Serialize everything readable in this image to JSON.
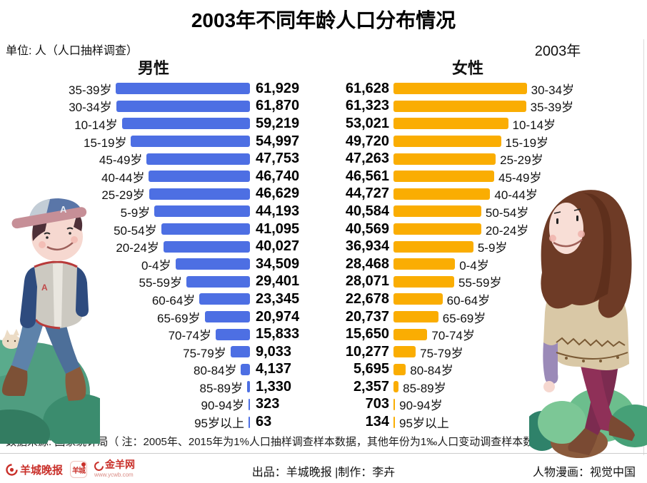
{
  "title": "2003年不同年龄人口分布情况",
  "unit_note": "单位: 人（人口抽样调查）",
  "year_label": "2003年",
  "male_header": "男性",
  "female_header": "女性",
  "colors": {
    "male_bar": "#4d6fe3",
    "female_bar": "#faad02",
    "logo_red": "#c9302a"
  },
  "chart_data": {
    "type": "bar",
    "orientation": "horizontal-pyramid",
    "title": "2003年不同年龄人口分布情况",
    "unit": "人",
    "xlim": [
      0,
      62000
    ],
    "legend_position": "column-headers",
    "grid": false,
    "male": {
      "name": "男性",
      "color": "#4d6fe3",
      "rows": [
        {
          "age": "35-39岁",
          "value": 61929
        },
        {
          "age": "30-34岁",
          "value": 61870
        },
        {
          "age": "10-14岁",
          "value": 59219
        },
        {
          "age": "15-19岁",
          "value": 54997
        },
        {
          "age": "45-49岁",
          "value": 47753
        },
        {
          "age": "40-44岁",
          "value": 46740
        },
        {
          "age": "25-29岁",
          "value": 46629
        },
        {
          "age": "5-9岁",
          "value": 44193
        },
        {
          "age": "50-54岁",
          "value": 41095
        },
        {
          "age": "20-24岁",
          "value": 40027
        },
        {
          "age": "0-4岁",
          "value": 34509
        },
        {
          "age": "55-59岁",
          "value": 29401
        },
        {
          "age": "60-64岁",
          "value": 23345
        },
        {
          "age": "65-69岁",
          "value": 20974
        },
        {
          "age": "70-74岁",
          "value": 15833
        },
        {
          "age": "75-79岁",
          "value": 9033
        },
        {
          "age": "80-84岁",
          "value": 4137
        },
        {
          "age": "85-89岁",
          "value": 1330
        },
        {
          "age": "90-94岁",
          "value": 323
        },
        {
          "age": "95岁以上",
          "value": 63
        }
      ]
    },
    "female": {
      "name": "女性",
      "color": "#faad02",
      "rows": [
        {
          "age": "30-34岁",
          "value": 61628
        },
        {
          "age": "35-39岁",
          "value": 61323
        },
        {
          "age": "10-14岁",
          "value": 53021
        },
        {
          "age": "15-19岁",
          "value": 49720
        },
        {
          "age": "25-29岁",
          "value": 47263
        },
        {
          "age": "45-49岁",
          "value": 46561
        },
        {
          "age": "40-44岁",
          "value": 44727
        },
        {
          "age": "50-54岁",
          "value": 40584
        },
        {
          "age": "20-24岁",
          "value": 40569
        },
        {
          "age": "5-9岁",
          "value": 36934
        },
        {
          "age": "0-4岁",
          "value": 28468
        },
        {
          "age": "55-59岁",
          "value": 28071
        },
        {
          "age": "60-64岁",
          "value": 22678
        },
        {
          "age": "65-69岁",
          "value": 20737
        },
        {
          "age": "70-74岁",
          "value": 15650
        },
        {
          "age": "75-79岁",
          "value": 10277
        },
        {
          "age": "80-84岁",
          "value": 5695
        },
        {
          "age": "85-89岁",
          "value": 2357
        },
        {
          "age": "90-94岁",
          "value": 703
        },
        {
          "age": "95岁以上",
          "value": 134
        }
      ]
    }
  },
  "footer": {
    "source_note": "数据来源: 国家统计局（ 注：2005年、2015年为1%人口抽样调查样本数据，其他年份为1‰人口变动调查样本数据）",
    "produced_by": "出品：羊城晚报 |制作：李卉",
    "illustration_credit": "人物漫画：视觉中国",
    "logos": {
      "paper": "羊城晚报",
      "app": "羊城",
      "web": "金羊网",
      "web_url": "www.ycwb.com"
    }
  }
}
